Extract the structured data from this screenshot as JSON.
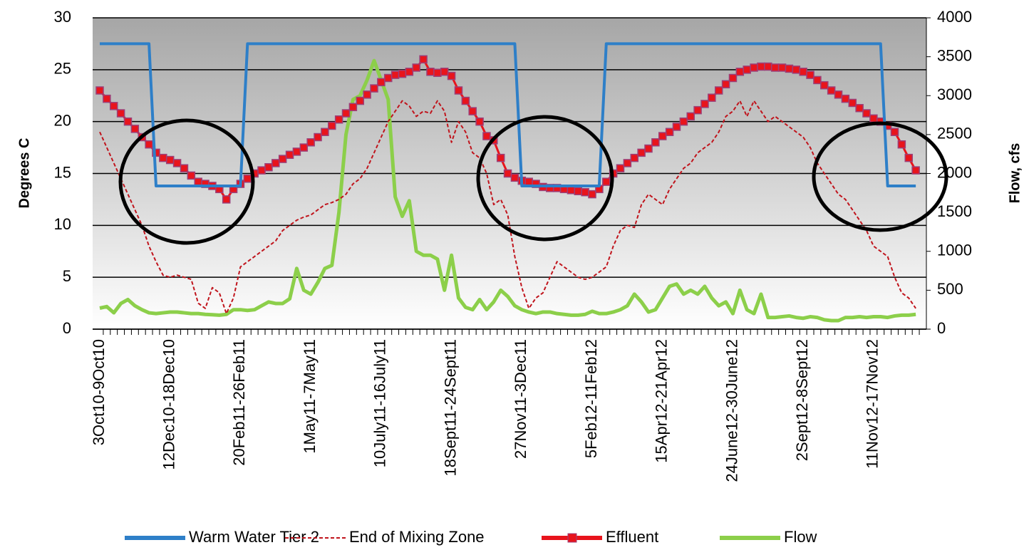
{
  "chart_data": {
    "type": "line",
    "y_label": "Degrees C",
    "y2_label": "Flow, cfs",
    "categories": [
      "3Oct10-9Oct10",
      null,
      null,
      null,
      null,
      null,
      null,
      null,
      null,
      null,
      "12Dec10-18Dec10",
      null,
      null,
      null,
      null,
      null,
      null,
      null,
      null,
      null,
      "20Feb11-26Feb11",
      null,
      null,
      null,
      null,
      null,
      null,
      null,
      null,
      null,
      "1May11-7May11",
      null,
      null,
      null,
      null,
      null,
      null,
      null,
      null,
      null,
      "10July11-16July11",
      null,
      null,
      null,
      null,
      null,
      null,
      null,
      null,
      null,
      "18Sept11-24Sept11",
      null,
      null,
      null,
      null,
      null,
      null,
      null,
      null,
      null,
      "27Nov11-3Dec11",
      null,
      null,
      null,
      null,
      null,
      null,
      null,
      null,
      null,
      "5Feb12-11Feb12",
      null,
      null,
      null,
      null,
      null,
      null,
      null,
      null,
      null,
      "15Apr12-21Apr12",
      null,
      null,
      null,
      null,
      null,
      null,
      null,
      null,
      null,
      "24June12-30June12",
      null,
      null,
      null,
      null,
      null,
      null,
      null,
      null,
      null,
      "2Sept12-8Sept12",
      null,
      null,
      null,
      null,
      null,
      null,
      null,
      null,
      null,
      "11Nov12-17Nov12",
      null,
      null,
      null,
      null,
      null,
      null
    ],
    "ylim": [
      0,
      30
    ],
    "yticks": [
      0,
      5,
      10,
      15,
      20,
      25,
      30
    ],
    "y2lim": [
      0,
      4000
    ],
    "y2ticks": [
      0,
      500,
      1000,
      1500,
      2000,
      2500,
      3000,
      3500,
      4000
    ],
    "grid": true,
    "legend": "bottom",
    "series": [
      {
        "name": "Warm Water Tier 2",
        "color": "#2e7fc8",
        "style": "solid",
        "values": [
          27.5,
          27.5,
          27.5,
          27.5,
          27.5,
          27.5,
          27.5,
          27.5,
          13.8,
          13.8,
          13.8,
          13.8,
          13.8,
          13.8,
          13.8,
          13.8,
          13.8,
          13.8,
          13.8,
          13.8,
          13.8,
          27.5,
          27.5,
          27.5,
          27.5,
          27.5,
          27.5,
          27.5,
          27.5,
          27.5,
          27.5,
          27.5,
          27.5,
          27.5,
          27.5,
          27.5,
          27.5,
          27.5,
          27.5,
          27.5,
          27.5,
          27.5,
          27.5,
          27.5,
          27.5,
          27.5,
          27.5,
          27.5,
          27.5,
          27.5,
          27.5,
          27.5,
          27.5,
          27.5,
          27.5,
          27.5,
          27.5,
          27.5,
          27.5,
          27.5,
          13.8,
          13.8,
          13.8,
          13.8,
          13.8,
          13.8,
          13.8,
          13.8,
          13.8,
          13.8,
          13.8,
          13.8,
          27.5,
          27.5,
          27.5,
          27.5,
          27.5,
          27.5,
          27.5,
          27.5,
          27.5,
          27.5,
          27.5,
          27.5,
          27.5,
          27.5,
          27.5,
          27.5,
          27.5,
          27.5,
          27.5,
          27.5,
          27.5,
          27.5,
          27.5,
          27.5,
          27.5,
          27.5,
          27.5,
          27.5,
          27.5,
          27.5,
          27.5,
          27.5,
          27.5,
          27.5,
          27.5,
          27.5,
          27.5,
          27.5,
          27.5,
          27.5,
          13.8,
          13.8,
          13.8,
          13.8,
          13.8
        ]
      },
      {
        "name": "End of Mixing Zone",
        "color": "#c0141c",
        "style": "dashed",
        "values": [
          19,
          17.5,
          16,
          14.5,
          13,
          11.5,
          10,
          8,
          6.5,
          5.2,
          5,
          5.2,
          5,
          4.8,
          2.5,
          2,
          4,
          3.5,
          1.5,
          3,
          6,
          6.5,
          7,
          7.5,
          8,
          8.5,
          9.5,
          10,
          10.5,
          10.8,
          11,
          11.5,
          12,
          12.2,
          12.5,
          13,
          14,
          14.5,
          15.5,
          17,
          18.5,
          20,
          21,
          22,
          21.5,
          20.5,
          21,
          20.8,
          22,
          21,
          18,
          20,
          19,
          17,
          16.5,
          15,
          12,
          12.5,
          11,
          7,
          4,
          2,
          3,
          3.5,
          5,
          6.5,
          6,
          5.5,
          5,
          4.8,
          5,
          5.5,
          6,
          8,
          9.5,
          10,
          9.8,
          12,
          13,
          12.5,
          12,
          13.5,
          14.5,
          15.5,
          16,
          17,
          17.5,
          18,
          19,
          20.5,
          21,
          22,
          20.5,
          22,
          21,
          20,
          20.5,
          20,
          19.5,
          19,
          18.5,
          17.5,
          16,
          15,
          14,
          13,
          12.5,
          11.5,
          10.5,
          9.5,
          8,
          7.5,
          7,
          5,
          3.5,
          3,
          2
        ]
      },
      {
        "name": "Effluent",
        "color": "#e8141c",
        "style": "markers",
        "values": [
          23,
          22.2,
          21.5,
          20.8,
          20,
          19.3,
          18.5,
          17.8,
          17,
          16.5,
          16.3,
          16,
          15.5,
          14.8,
          14.2,
          14,
          13.8,
          13.5,
          12.5,
          13.5,
          14,
          14.5,
          15,
          15.3,
          15.6,
          16,
          16.4,
          16.8,
          17.1,
          17.5,
          18,
          18.5,
          19,
          19.6,
          20.2,
          20.8,
          21.4,
          22,
          22.6,
          23.2,
          23.8,
          24.2,
          24.5,
          24.6,
          24.8,
          25.2,
          26,
          24.8,
          24.7,
          24.8,
          24.4,
          23,
          22,
          21,
          20,
          18.6,
          18.2,
          16.5,
          15,
          14.6,
          14.3,
          14.2,
          14,
          13.7,
          13.6,
          13.6,
          13.5,
          13.4,
          13.3,
          13.2,
          13,
          13.5,
          14.2,
          15,
          15.5,
          16,
          16.5,
          17,
          17.4,
          18,
          18.6,
          19,
          19.5,
          20,
          20.5,
          21.1,
          21.7,
          22.3,
          23,
          23.6,
          24.2,
          24.8,
          25,
          25.2,
          25.3,
          25.3,
          25.2,
          25.2,
          25.1,
          25,
          24.8,
          24.5,
          24,
          23.5,
          23,
          22.6,
          22.2,
          21.8,
          21.3,
          20.8,
          20.3,
          20,
          19.6,
          19,
          17.8,
          16.5,
          15.3
        ]
      },
      {
        "name": "Flow",
        "color": "#8ccf4a",
        "style": "thick",
        "axis": "y2",
        "values": [
          270,
          290,
          210,
          330,
          380,
          300,
          250,
          210,
          200,
          210,
          220,
          220,
          210,
          200,
          200,
          190,
          185,
          180,
          190,
          250,
          250,
          240,
          250,
          300,
          350,
          330,
          330,
          390,
          780,
          500,
          450,
          600,
          780,
          820,
          1500,
          2500,
          2950,
          3000,
          3200,
          3450,
          3200,
          2950,
          1700,
          1450,
          1650,
          1000,
          950,
          950,
          900,
          500,
          950,
          400,
          280,
          250,
          380,
          250,
          350,
          500,
          420,
          300,
          250,
          220,
          200,
          220,
          220,
          200,
          190,
          180,
          180,
          190,
          230,
          200,
          200,
          220,
          250,
          300,
          450,
          350,
          220,
          250,
          400,
          550,
          580,
          450,
          500,
          450,
          550,
          400,
          300,
          350,
          200,
          500,
          250,
          200,
          450,
          150,
          150,
          160,
          170,
          150,
          140,
          160,
          150,
          120,
          110,
          110,
          150,
          150,
          160,
          150,
          160,
          160,
          150,
          170,
          180,
          180,
          190
        ]
      }
    ]
  }
}
